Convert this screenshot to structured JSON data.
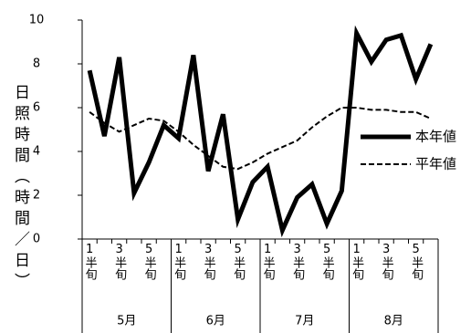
{
  "chart_data": {
    "type": "line",
    "y_label": "日照時間（時間／日）",
    "categories": [
      "1半旬",
      null,
      "3半旬",
      null,
      "5半旬",
      null,
      "1半旬",
      null,
      "3半旬",
      null,
      "5半旬",
      null,
      "1半旬",
      null,
      "3半旬",
      null,
      "5半旬",
      null,
      "1半旬",
      null,
      "3半旬",
      null,
      "5半旬",
      null
    ],
    "groups": [
      "5月",
      "6月",
      "7月",
      "8月"
    ],
    "series": [
      {
        "name": "本年値",
        "color": "#000000",
        "dash": false,
        "values": [
          7.7,
          4.7,
          8.3,
          2.1,
          3.5,
          5.2,
          4.6,
          8.4,
          3.1,
          5.7,
          0.9,
          2.6,
          3.3,
          0.4,
          1.9,
          2.5,
          0.7,
          2.2,
          9.4,
          8.1,
          9.1,
          9.3,
          7.3,
          8.9
        ]
      },
      {
        "name": "平年値",
        "color": "#000000",
        "dash": true,
        "values": [
          5.8,
          5.3,
          4.9,
          5.2,
          5.5,
          5.4,
          4.9,
          4.3,
          3.8,
          3.3,
          3.2,
          3.5,
          3.9,
          4.2,
          4.5,
          5.1,
          5.6,
          6.0,
          6.0,
          5.9,
          5.9,
          5.8,
          5.8,
          5.5
        ]
      }
    ],
    "ylim": [
      0,
      10
    ],
    "yticks": [
      0,
      2,
      4,
      6,
      8,
      10
    ],
    "grid": false
  }
}
